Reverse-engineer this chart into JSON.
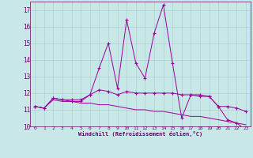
{
  "x_values": [
    0,
    1,
    2,
    3,
    4,
    5,
    6,
    7,
    8,
    9,
    10,
    11,
    12,
    13,
    14,
    15,
    16,
    17,
    18,
    19,
    20,
    21,
    22,
    23
  ],
  "line1": [
    11.2,
    11.1,
    11.7,
    11.6,
    11.5,
    11.5,
    11.9,
    13.5,
    15.0,
    12.3,
    16.4,
    13.8,
    12.9,
    15.6,
    17.3,
    13.8,
    10.5,
    11.9,
    11.8,
    11.8,
    11.2,
    10.4,
    10.2,
    9.8
  ],
  "line2": [
    11.2,
    11.1,
    11.7,
    11.6,
    11.6,
    11.6,
    11.9,
    12.2,
    12.1,
    11.9,
    12.1,
    12.0,
    12.0,
    12.0,
    12.0,
    12.0,
    11.9,
    11.9,
    11.9,
    11.8,
    11.2,
    11.2,
    11.1,
    10.9
  ],
  "line3": [
    11.2,
    11.1,
    11.6,
    11.5,
    11.5,
    11.4,
    11.4,
    11.3,
    11.3,
    11.2,
    11.1,
    11.0,
    11.0,
    10.9,
    10.9,
    10.8,
    10.7,
    10.6,
    10.6,
    10.5,
    10.4,
    10.3,
    10.2,
    10.1
  ],
  "line_color": "#990099",
  "bg_color": "#c8e8e8",
  "grid_color": "#b0d0d0",
  "text_color": "#660066",
  "xlabel": "Windchill (Refroidissement éolien,°C)",
  "ylim": [
    10,
    17.5
  ],
  "xlim": [
    -0.5,
    23.5
  ],
  "yticks": [
    10,
    11,
    12,
    13,
    14,
    15,
    16,
    17
  ],
  "xticks": [
    0,
    1,
    2,
    3,
    4,
    5,
    6,
    7,
    8,
    9,
    10,
    11,
    12,
    13,
    14,
    15,
    16,
    17,
    18,
    19,
    20,
    21,
    22,
    23
  ]
}
